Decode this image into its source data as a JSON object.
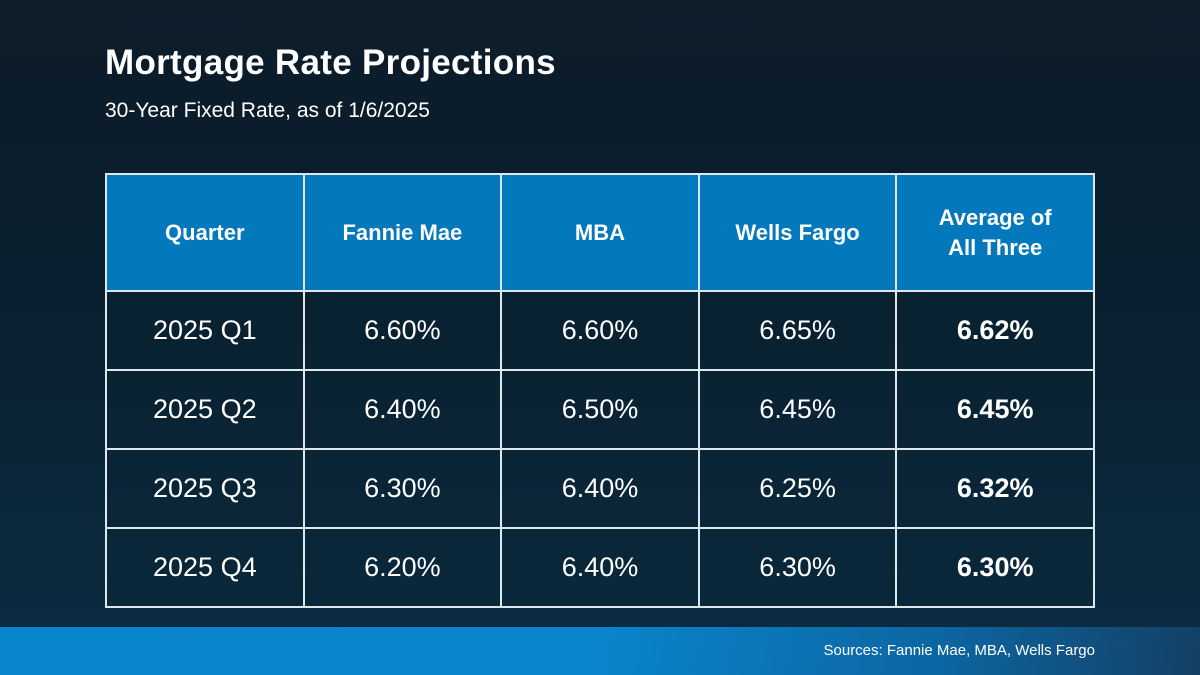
{
  "header": {
    "title": "Mortgage Rate Projections",
    "subtitle": "30-Year Fixed Rate, as of 1/6/2025"
  },
  "chart_data": {
    "type": "table",
    "title": "Mortgage Rate Projections",
    "subtitle": "30-Year Fixed Rate, as of 1/6/2025",
    "columns": [
      "Quarter",
      "Fannie Mae",
      "MBA",
      "Wells Fargo",
      "Average of All Three"
    ],
    "rows": [
      [
        "2025 Q1",
        "6.60%",
        "6.60%",
        "6.65%",
        "6.62%"
      ],
      [
        "2025 Q2",
        "6.40%",
        "6.50%",
        "6.45%",
        "6.45%"
      ],
      [
        "2025 Q3",
        "6.30%",
        "6.40%",
        "6.25%",
        "6.32%"
      ],
      [
        "2025 Q4",
        "6.20%",
        "6.40%",
        "6.30%",
        "6.30%"
      ]
    ],
    "units": "percent",
    "notes": "Last column values are bold (emphasized averages)"
  },
  "footer": {
    "sources": "Sources: Fannie Mae, MBA, Wells Fargo"
  },
  "colors": {
    "header_cell_blue": "#0478bc",
    "footer_bar_blue": "#0a84cc",
    "background_navy": "#0a2233",
    "border_light": "#dde7ee",
    "text_white": "#ffffff"
  }
}
